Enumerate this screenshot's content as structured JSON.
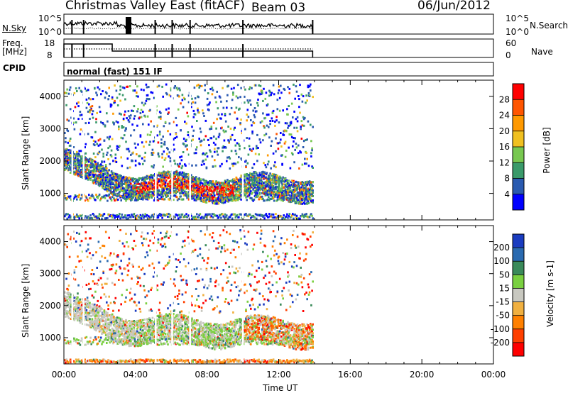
{
  "header": {
    "title": "Christmas Valley East (fitACF)",
    "beam": "Beam 03",
    "date": "06/Jun/2012"
  },
  "panels": {
    "nsky": {
      "label": "N.Sky",
      "ticks": [
        "10^5",
        "10^0"
      ]
    },
    "nsearch": {
      "label": "N.Search",
      "ticks": [
        "10^5",
        "10^0"
      ]
    },
    "freq": {
      "label_1": "Freq.",
      "label_2": "[MHz]",
      "ticks": [
        "18",
        "8"
      ]
    },
    "nave": {
      "label": "Nave",
      "ticks": [
        "60",
        "0"
      ]
    },
    "cpid": {
      "label": "CPID",
      "value": "normal (fast) 151 IF"
    }
  },
  "chart_data": [
    {
      "type": "heatmap",
      "name": "power",
      "ylabel": "Slant Range [km]",
      "xlabel": "Time UT",
      "xticks": [
        "00:00",
        "04:00",
        "08:00",
        "12:00",
        "16:00",
        "20:00",
        "00:00"
      ],
      "xlim_hours": [
        0,
        24
      ],
      "ylim": [
        180,
        4500
      ],
      "yticks": [
        1000,
        2000,
        3000,
        4000
      ],
      "colorbar": {
        "label": "Power [dB]",
        "ticks": [
          "28",
          "24",
          "20",
          "16",
          "12",
          "8",
          "4"
        ],
        "colors": [
          "#ff0000",
          "#ff5500",
          "#ff9900",
          "#f0c020",
          "#78c850",
          "#3a9a6a",
          "#2a5ab0",
          "#0000ff"
        ]
      },
      "data_extent_hours": [
        0,
        13.9
      ]
    },
    {
      "type": "heatmap",
      "name": "velocity",
      "ylabel": "Slant Range [km]",
      "xlabel": "Time UT",
      "xticks": [
        "00:00",
        "04:00",
        "08:00",
        "12:00",
        "16:00",
        "20:00",
        "00:00"
      ],
      "xlim_hours": [
        0,
        24
      ],
      "ylim": [
        180,
        4500
      ],
      "yticks": [
        1000,
        2000,
        3000,
        4000
      ],
      "colorbar": {
        "label": "Velocity [m s-1]",
        "ticks": [
          "200",
          "100",
          "50",
          "15",
          "-15",
          "-50",
          "-100",
          "-200"
        ],
        "colors": [
          "#1a3cc0",
          "#2a6ab0",
          "#3a8a5a",
          "#7ad040",
          "#c8c8c0",
          "#f0b040",
          "#ff8000",
          "#ff4000",
          "#ff0000"
        ]
      },
      "data_extent_hours": [
        0,
        13.9
      ]
    }
  ],
  "xaxis_label": "Time UT"
}
